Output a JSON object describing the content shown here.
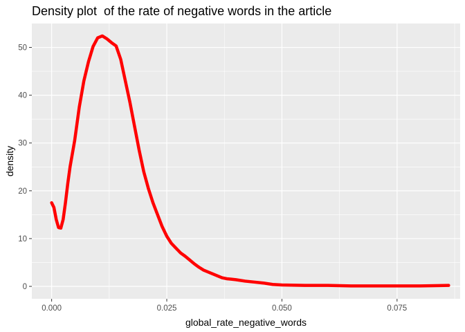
{
  "chart_data": {
    "type": "line",
    "title": "Density plot  of the rate of negative words in the article",
    "xlabel": "global_rate_negative_words",
    "ylabel": "density",
    "xlim": [
      -0.0043,
      0.0887
    ],
    "ylim": [
      -2.6,
      55.0
    ],
    "x_ticks": [
      0.0,
      0.025,
      0.05,
      0.075
    ],
    "x_tick_labels": [
      "0.000",
      "0.025",
      "0.050",
      "0.075"
    ],
    "y_ticks": [
      0,
      10,
      20,
      30,
      40,
      50
    ],
    "y_tick_labels": [
      "0",
      "10",
      "20",
      "30",
      "40",
      "50"
    ],
    "grid": true,
    "background_color": "#ebebeb",
    "grid_color": "#ffffff",
    "line_color": "#ff0000",
    "series": [
      {
        "x": [
          0.0,
          0.0005,
          0.001,
          0.0015,
          0.002,
          0.0025,
          0.003,
          0.0035,
          0.004,
          0.005,
          0.006,
          0.007,
          0.008,
          0.009,
          0.01,
          0.011,
          0.012,
          0.013,
          0.014,
          0.015,
          0.016,
          0.017,
          0.018,
          0.019,
          0.02,
          0.021,
          0.022,
          0.023,
          0.024,
          0.025,
          0.026,
          0.027,
          0.028,
          0.029,
          0.03,
          0.031,
          0.032,
          0.033,
          0.034,
          0.035,
          0.036,
          0.037,
          0.038,
          0.039,
          0.04,
          0.042,
          0.044,
          0.046,
          0.048,
          0.05,
          0.055,
          0.06,
          0.065,
          0.07,
          0.075,
          0.08,
          0.0862
        ],
        "y": [
          17.5,
          16.5,
          14.0,
          12.3,
          12.2,
          14.0,
          17.5,
          21.5,
          25.0,
          30.5,
          37.5,
          43.0,
          47.0,
          50.2,
          52.0,
          52.4,
          51.8,
          51.0,
          50.3,
          47.5,
          43.0,
          38.5,
          33.5,
          28.5,
          24.0,
          20.5,
          17.5,
          15.0,
          12.5,
          10.5,
          9.0,
          8.0,
          7.0,
          6.3,
          5.5,
          4.7,
          4.0,
          3.4,
          3.0,
          2.6,
          2.2,
          1.8,
          1.6,
          1.5,
          1.4,
          1.1,
          0.9,
          0.7,
          0.4,
          0.3,
          0.2,
          0.2,
          0.1,
          0.1,
          0.1,
          0.1,
          0.2
        ]
      }
    ]
  }
}
